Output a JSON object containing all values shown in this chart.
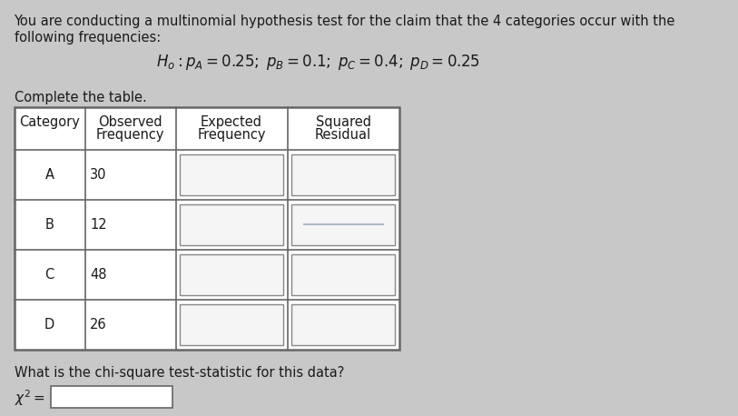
{
  "bg_color": "#c8c8c8",
  "paper_color": "#ebe9e5",
  "title_line1": "You are conducting a multinomial hypothesis test for the claim that the 4 categories occur with the",
  "title_line2": "following frequencies:",
  "hypothesis": "$H_o: p_A = 0.25;\\; p_B = 0.1;\\; p_C = 0.4;\\; p_D = 0.25$",
  "complete_table_label": "Complete the table.",
  "col_headers_line1": [
    "Category",
    "Observed",
    "Expected",
    "Squared"
  ],
  "col_headers_line2": [
    "",
    "Frequency",
    "Frequency",
    "Residual"
  ],
  "categories": [
    "A",
    "B",
    "C",
    "D"
  ],
  "observed": [
    "30",
    "12",
    "48",
    "26"
  ],
  "question_line1": "What is the chi-square test-statistic for this data?",
  "text_color": "#1a1a1a",
  "table_border_color": "#666666",
  "input_box_color": "#cccccc",
  "input_box_border": "#888888",
  "faint_line_color": "#b0b8c8"
}
